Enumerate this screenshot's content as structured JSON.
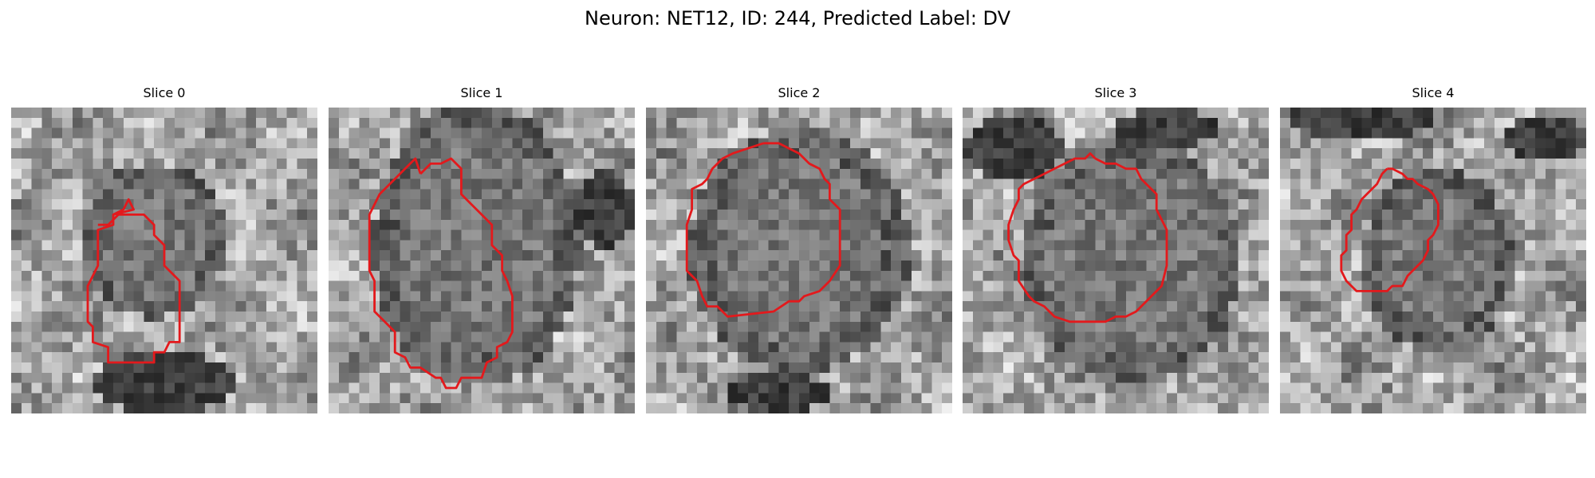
{
  "figure": {
    "title": "Neuron: NET12, ID: 244, Predicted Label: DV",
    "contour_color": "#e3191c",
    "colormap": "grayscale"
  },
  "slices": [
    {
      "title": "Slice 0"
    },
    {
      "title": "Slice 1"
    },
    {
      "title": "Slice 2"
    },
    {
      "title": "Slice 3"
    },
    {
      "title": "Slice 4"
    }
  ]
}
